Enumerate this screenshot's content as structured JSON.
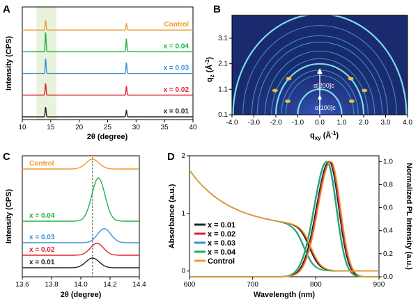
{
  "chart_data": [
    {
      "id": "A",
      "type": "line",
      "panel_label": "A",
      "xlabel": "2θ (degree)",
      "ylabel": "Intensity (CPS)",
      "xlim": [
        10,
        40
      ],
      "xticks": [
        10,
        15,
        20,
        25,
        30,
        35,
        40
      ],
      "highlight_band": [
        12.5,
        16
      ],
      "series": [
        {
          "name": "x = 0.01",
          "color": "#222222",
          "peaks": [
            {
              "x": 14.1,
              "h": 0.5
            },
            {
              "x": 28.3,
              "h": 0.35
            }
          ]
        },
        {
          "name": "x = 0.02",
          "color": "#e0222b",
          "peaks": [
            {
              "x": 14.1,
              "h": 0.6
            },
            {
              "x": 28.3,
              "h": 0.45
            }
          ]
        },
        {
          "name": "x = 0.03",
          "color": "#3b8fd0",
          "peaks": [
            {
              "x": 14.1,
              "h": 0.75
            },
            {
              "x": 28.3,
              "h": 0.55
            }
          ]
        },
        {
          "name": "x = 0.04",
          "color": "#22b04a",
          "peaks": [
            {
              "x": 14.1,
              "h": 1.0
            },
            {
              "x": 28.3,
              "h": 0.65
            }
          ]
        },
        {
          "name": "Control",
          "color": "#f29a2e",
          "peaks": [
            {
              "x": 14.1,
              "h": 0.5
            },
            {
              "x": 28.3,
              "h": 0.35
            }
          ]
        }
      ]
    },
    {
      "id": "B",
      "type": "heatmap",
      "panel_label": "B",
      "xlabel": "q",
      "xlabel_sub": "xy",
      "xlabel_unit": " (Å",
      "xlabel_sup": "-1",
      "xlabel_close": ")",
      "ylabel": "q",
      "ylabel_sub": "z",
      "ylabel_unit": " (Å",
      "ylabel_sup": "-1",
      "ylabel_close": ")",
      "xlim": [
        -4.0,
        4.0
      ],
      "ylim": [
        0.1,
        4.0
      ],
      "xticks": [
        "-4.0",
        "-3.0",
        "-2.0",
        "-1.0",
        "0.0",
        "1.0",
        "2.0",
        "3.0",
        "4.0"
      ],
      "yticks": [
        "0.1",
        "1.1",
        "2.1",
        "3.1"
      ],
      "ring_radii": [
        1.0,
        1.55,
        1.75,
        2.0,
        2.2,
        2.5,
        2.85,
        3.1,
        3.5,
        3.95
      ],
      "bright_rings": [
        1.0,
        2.0,
        3.95
      ],
      "spots": [
        {
          "q": 2.0,
          "angle": 45
        },
        {
          "q": 2.0,
          "angle": 135
        },
        {
          "q": 2.25,
          "angle": 25
        },
        {
          "q": 2.25,
          "angle": 155
        },
        {
          "q": 1.55,
          "angle": 20
        },
        {
          "q": 1.55,
          "angle": 160
        }
      ],
      "annotations": [
        "α[200]c",
        "α[100]c"
      ],
      "background_color": "#1a2a6e"
    },
    {
      "id": "C",
      "type": "line",
      "panel_label": "C",
      "xlabel": "2θ (degree)",
      "ylabel": "Intensity (CPS)",
      "xlim": [
        13.6,
        14.4
      ],
      "xticks": [
        "13.6",
        "13.8",
        "14.0",
        "14.2",
        "14.4"
      ],
      "reference_line_x": 14.08,
      "series": [
        {
          "name": "x = 0.01",
          "color": "#222222",
          "center": 14.08,
          "height": 0.45
        },
        {
          "name": "x = 0.02",
          "color": "#e0222b",
          "center": 14.11,
          "height": 0.55
        },
        {
          "name": "x = 0.03",
          "color": "#3b8fd0",
          "center": 14.16,
          "height": 0.65
        },
        {
          "name": "x = 0.04",
          "color": "#22b04a",
          "center": 14.12,
          "height": 1.0
        },
        {
          "name": "Control",
          "color": "#f29a2e",
          "center": 14.08,
          "height": 0.45
        }
      ]
    },
    {
      "id": "D",
      "type": "line",
      "panel_label": "D",
      "xlabel": "Wavelength (nm)",
      "ylabel": "Absorbance (a.u.)",
      "y2label": "Normalized PL Intensity (a.u.)",
      "xlim": [
        600,
        900
      ],
      "ylim": [
        -0.1,
        2.0
      ],
      "y2lim": [
        0,
        1.05
      ],
      "xticks": [
        "600",
        "700",
        "800",
        "900"
      ],
      "yticks": [
        "0",
        "1",
        "2"
      ],
      "y2ticks": [
        "0.0",
        "0.2",
        "0.4",
        "0.6",
        "0.8",
        "1.0"
      ],
      "series": [
        {
          "name": "x = 0.01",
          "color": "#222222",
          "abs_edge": 790,
          "pl_peak": 821
        },
        {
          "name": "x = 0.02",
          "color": "#e0222b",
          "abs_edge": 792,
          "pl_peak": 823
        },
        {
          "name": "x = 0.03",
          "color": "#3b8fd0",
          "abs_edge": 782,
          "pl_peak": 818
        },
        {
          "name": "x = 0.04",
          "color": "#22b04a",
          "abs_edge": 781,
          "pl_peak": 817
        },
        {
          "name": "Control",
          "color": "#f29a2e",
          "abs_edge": 793,
          "pl_peak": 824
        }
      ]
    }
  ]
}
